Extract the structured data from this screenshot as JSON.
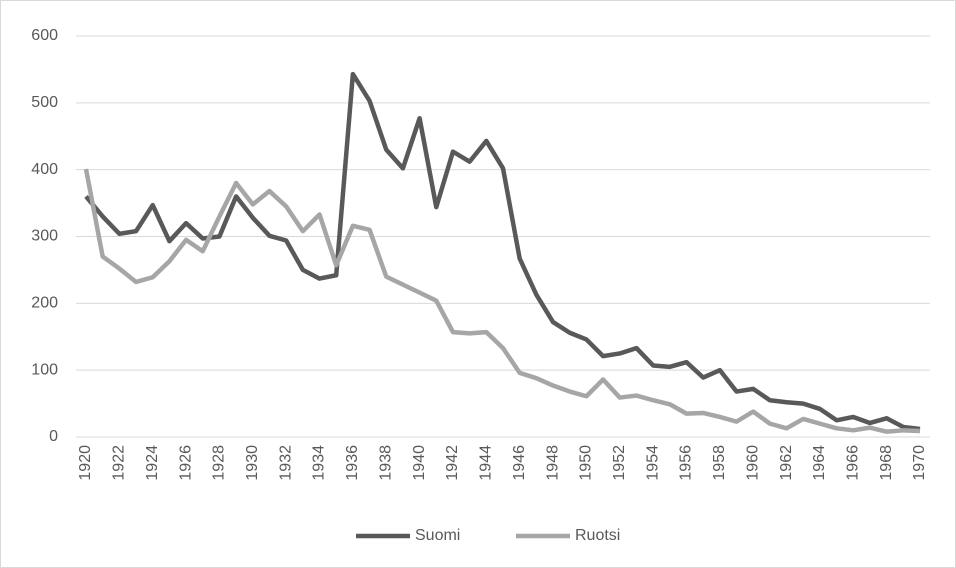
{
  "chart_data": {
    "type": "line",
    "x": [
      1920,
      1921,
      1922,
      1923,
      1924,
      1925,
      1926,
      1927,
      1928,
      1929,
      1930,
      1931,
      1932,
      1933,
      1934,
      1935,
      1936,
      1937,
      1938,
      1939,
      1940,
      1941,
      1942,
      1943,
      1944,
      1945,
      1946,
      1947,
      1948,
      1949,
      1950,
      1951,
      1952,
      1953,
      1954,
      1955,
      1956,
      1957,
      1958,
      1959,
      1960,
      1961,
      1962,
      1963,
      1964,
      1965,
      1966,
      1967,
      1968,
      1969,
      1970
    ],
    "series": [
      {
        "name": "Suomi",
        "color": "#595959",
        "values": [
          360,
          330,
          304,
          308,
          347,
          293,
          320,
          297,
          300,
          360,
          328,
          301,
          294,
          250,
          237,
          242,
          543,
          503,
          430,
          402,
          477,
          344,
          427,
          412,
          443,
          402,
          267,
          213,
          172,
          156,
          146,
          121,
          125,
          133,
          107,
          105,
          112,
          89,
          100,
          68,
          72,
          55,
          52,
          50,
          42,
          25,
          30,
          21,
          28,
          15,
          12
        ]
      },
      {
        "name": "Ruotsi",
        "color": "#a6a6a6",
        "values": [
          401,
          270,
          252,
          232,
          239,
          263,
          295,
          278,
          330,
          380,
          348,
          368,
          345,
          308,
          333,
          257,
          316,
          310,
          240,
          228,
          216,
          204,
          157,
          155,
          157,
          133,
          96,
          88,
          77,
          68,
          61,
          86,
          59,
          62,
          55,
          49,
          35,
          36,
          30,
          23,
          38,
          20,
          13,
          27,
          20,
          13,
          10,
          14,
          8,
          10,
          9
        ]
      }
    ],
    "xlim": [
      1920,
      1970
    ],
    "xticks": [
      1920,
      1922,
      1924,
      1926,
      1928,
      1930,
      1932,
      1934,
      1936,
      1938,
      1940,
      1942,
      1944,
      1946,
      1948,
      1950,
      1952,
      1954,
      1956,
      1958,
      1960,
      1962,
      1964,
      1966,
      1968,
      1970
    ],
    "ylim": [
      0,
      600
    ],
    "yticks": [
      0,
      100,
      200,
      300,
      400,
      500,
      600
    ],
    "grid": true,
    "legend": "bottom"
  }
}
